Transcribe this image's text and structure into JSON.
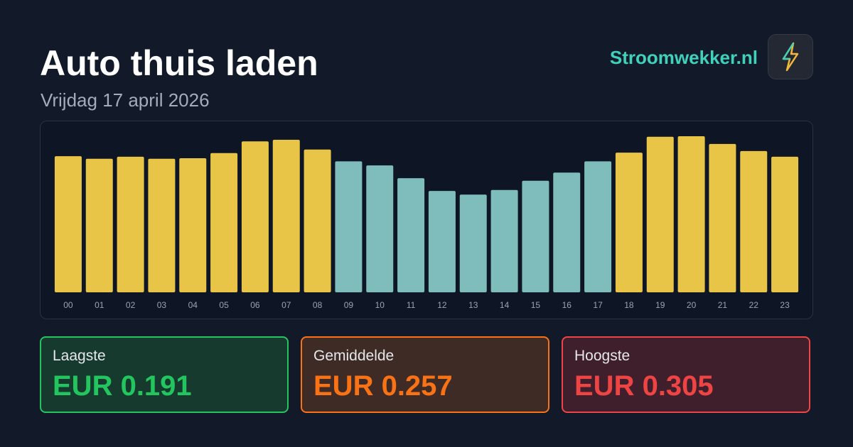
{
  "header": {
    "title": "Auto thuis laden",
    "subtitle": "Vrijdag 17 april 2026",
    "brand": "Stroomwekker.nl"
  },
  "chart_data": {
    "type": "bar",
    "categories": [
      "00",
      "01",
      "02",
      "03",
      "04",
      "05",
      "06",
      "07",
      "08",
      "09",
      "10",
      "11",
      "12",
      "13",
      "14",
      "15",
      "16",
      "17",
      "18",
      "19",
      "20",
      "21",
      "22",
      "23"
    ],
    "values": [
      0.266,
      0.261,
      0.265,
      0.261,
      0.262,
      0.272,
      0.295,
      0.298,
      0.279,
      0.256,
      0.248,
      0.223,
      0.198,
      0.191,
      0.2,
      0.218,
      0.234,
      0.256,
      0.273,
      0.304,
      0.305,
      0.29,
      0.276,
      0.265
    ],
    "colors": [
      "#e8c547",
      "#e8c547",
      "#e8c547",
      "#e8c547",
      "#e8c547",
      "#e8c547",
      "#e8c547",
      "#e8c547",
      "#e8c547",
      "#7fbcbc",
      "#7fbcbc",
      "#7fbcbc",
      "#7fbcbc",
      "#7fbcbc",
      "#7fbcbc",
      "#7fbcbc",
      "#7fbcbc",
      "#7fbcbc",
      "#e8c547",
      "#e8c547",
      "#e8c547",
      "#e8c547",
      "#e8c547",
      "#e8c547"
    ]
  },
  "stats": [
    {
      "label": "Laagste",
      "value": "EUR 0.191"
    },
    {
      "label": "Gemiddelde",
      "value": "EUR 0.257"
    },
    {
      "label": "Hoogste",
      "value": "EUR 0.305"
    }
  ]
}
